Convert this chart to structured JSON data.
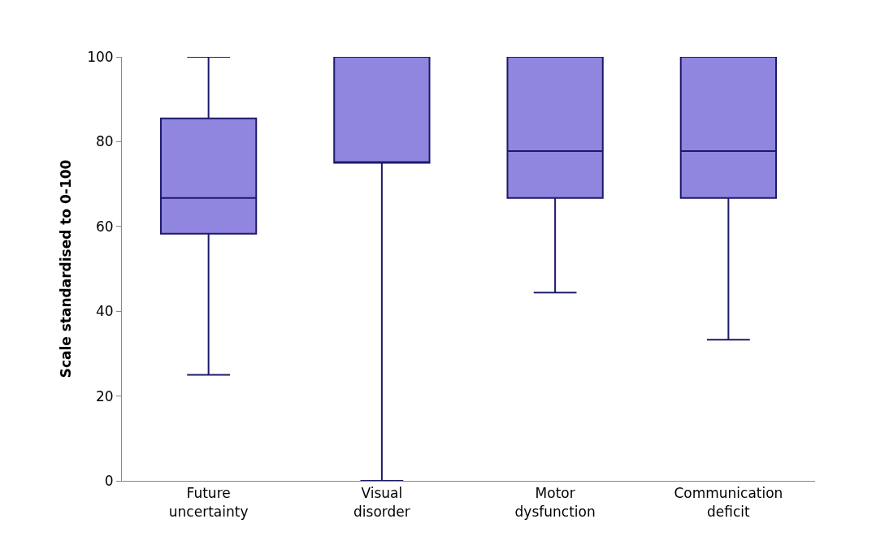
{
  "chart_data": {
    "type": "box",
    "ylabel": "Scale standardised to 0-100",
    "categories": [
      "Future uncertainty",
      "Visual disorder",
      "Motor dysfunction",
      "Communication deficit"
    ],
    "series": [
      {
        "color": "#9086e0",
        "boxes": [
          {
            "low": 25,
            "q1": 58.3,
            "median": 66.7,
            "q3": 85.5,
            "high": 100
          },
          {
            "low": 0,
            "q1": 75,
            "median": 75,
            "q3": 100,
            "high": 100
          },
          {
            "low": 44.4,
            "q1": 66.7,
            "median": 77.8,
            "q3": 100,
            "high": 100
          },
          {
            "low": 33.3,
            "q1": 66.7,
            "median": 77.8,
            "q3": 100,
            "high": 100
          }
        ]
      }
    ],
    "ylim": [
      0,
      100
    ],
    "yticks": [
      0,
      20,
      40,
      60,
      80,
      100
    ]
  }
}
